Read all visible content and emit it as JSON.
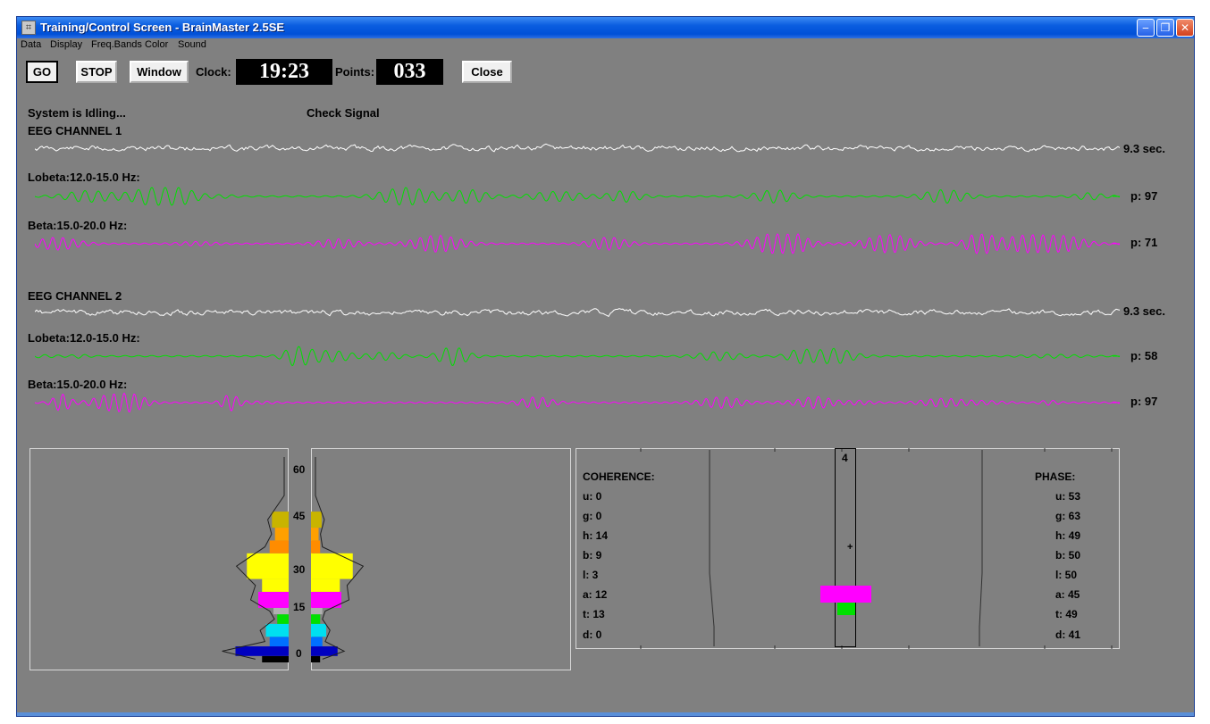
{
  "window": {
    "title": "Training/Control Screen - BrainMaster 2.5SE"
  },
  "menu": [
    "Data",
    "Display",
    "Freq.Bands",
    "Color",
    "Sound"
  ],
  "toolbar": {
    "go_label": "GO",
    "stop_label": "STOP",
    "window_label": "Window",
    "clock_label": "Clock:",
    "clock_value": "19:23",
    "points_label": "Points:",
    "points_value": "033",
    "close_label": "Close"
  },
  "status": {
    "system": "System is Idling...",
    "signal": "Check Signal"
  },
  "channels": [
    {
      "title": "EEG CHANNEL 1",
      "duration": "9.3 sec.",
      "bands": [
        {
          "label": "Lobeta:12.0-15.0 Hz:",
          "value": "p: 97"
        },
        {
          "label": "Beta:15.0-20.0 Hz:",
          "value": "p: 71"
        }
      ]
    },
    {
      "title": "EEG CHANNEL 2",
      "duration": "9.3 sec.",
      "bands": [
        {
          "label": "Lobeta:12.0-15.0 Hz:",
          "value": "p: 58"
        },
        {
          "label": "Beta:15.0-20.0 Hz:",
          "value": "p: 97"
        }
      ]
    }
  ],
  "colors": {
    "eeg": "#ffffff",
    "lobeta": "#00e000",
    "beta": "#ff00ff"
  },
  "spectrum": {
    "axis_ticks": [
      "60",
      "45",
      "30",
      "15",
      "0"
    ],
    "axis_range": [
      0,
      64
    ],
    "left_bands": [
      {
        "from": 0,
        "to": 2,
        "level": 0.35,
        "color": "#000000"
      },
      {
        "from": 2,
        "to": 5,
        "level": 0.7,
        "color": "#0000c0"
      },
      {
        "from": 5,
        "to": 8,
        "level": 0.25,
        "color": "#0070ff"
      },
      {
        "from": 8,
        "to": 12,
        "level": 0.3,
        "color": "#00e0f0"
      },
      {
        "from": 12,
        "to": 15,
        "level": 0.15,
        "color": "#00e000"
      },
      {
        "from": 15,
        "to": 17,
        "level": 0.2,
        "color": "#b0b0b0"
      },
      {
        "from": 17,
        "to": 22,
        "level": 0.4,
        "color": "#ff00ff"
      },
      {
        "from": 22,
        "to": 26,
        "level": 0.35,
        "color": "#ffff00"
      },
      {
        "from": 26,
        "to": 34,
        "level": 0.55,
        "color": "#ffff00"
      },
      {
        "from": 34,
        "to": 38,
        "level": 0.25,
        "color": "#ff8c00"
      },
      {
        "from": 38,
        "to": 42,
        "level": 0.18,
        "color": "#ffa000"
      },
      {
        "from": 42,
        "to": 47,
        "level": 0.22,
        "color": "#c8b400"
      }
    ],
    "right_bands": [
      {
        "from": 0,
        "to": 2,
        "level": 0.12,
        "color": "#000000"
      },
      {
        "from": 2,
        "to": 5,
        "level": 0.35,
        "color": "#0000c0"
      },
      {
        "from": 5,
        "to": 8,
        "level": 0.15,
        "color": "#0070ff"
      },
      {
        "from": 8,
        "to": 12,
        "level": 0.2,
        "color": "#00e0f0"
      },
      {
        "from": 12,
        "to": 15,
        "level": 0.12,
        "color": "#00e000"
      },
      {
        "from": 15,
        "to": 17,
        "level": 0.15,
        "color": "#b0b0b0"
      },
      {
        "from": 17,
        "to": 22,
        "level": 0.4,
        "color": "#ff00ff"
      },
      {
        "from": 22,
        "to": 26,
        "level": 0.38,
        "color": "#ffff00"
      },
      {
        "from": 26,
        "to": 34,
        "level": 0.55,
        "color": "#ffff00"
      },
      {
        "from": 34,
        "to": 38,
        "level": 0.12,
        "color": "#ff8c00"
      },
      {
        "from": 38,
        "to": 42,
        "level": 0.1,
        "color": "#ffa000"
      },
      {
        "from": 42,
        "to": 47,
        "level": 0.14,
        "color": "#c8b400"
      }
    ]
  },
  "coherence": {
    "title": "COHERENCE:",
    "items": [
      "u: 0",
      "g: 0",
      "h: 14",
      "b: 9",
      "l: 3",
      "a: 12",
      "t: 13",
      "d: 0"
    ]
  },
  "meter": {
    "top_label": "4",
    "markers": [
      {
        "color": "#ff00ff"
      },
      {
        "color": "#00e000"
      }
    ]
  },
  "phase": {
    "title": "PHASE:",
    "items": [
      "u: 53",
      "g: 63",
      "h: 49",
      "b: 50",
      "l: 50",
      "a: 45",
      "t: 49",
      "d: 41"
    ]
  }
}
